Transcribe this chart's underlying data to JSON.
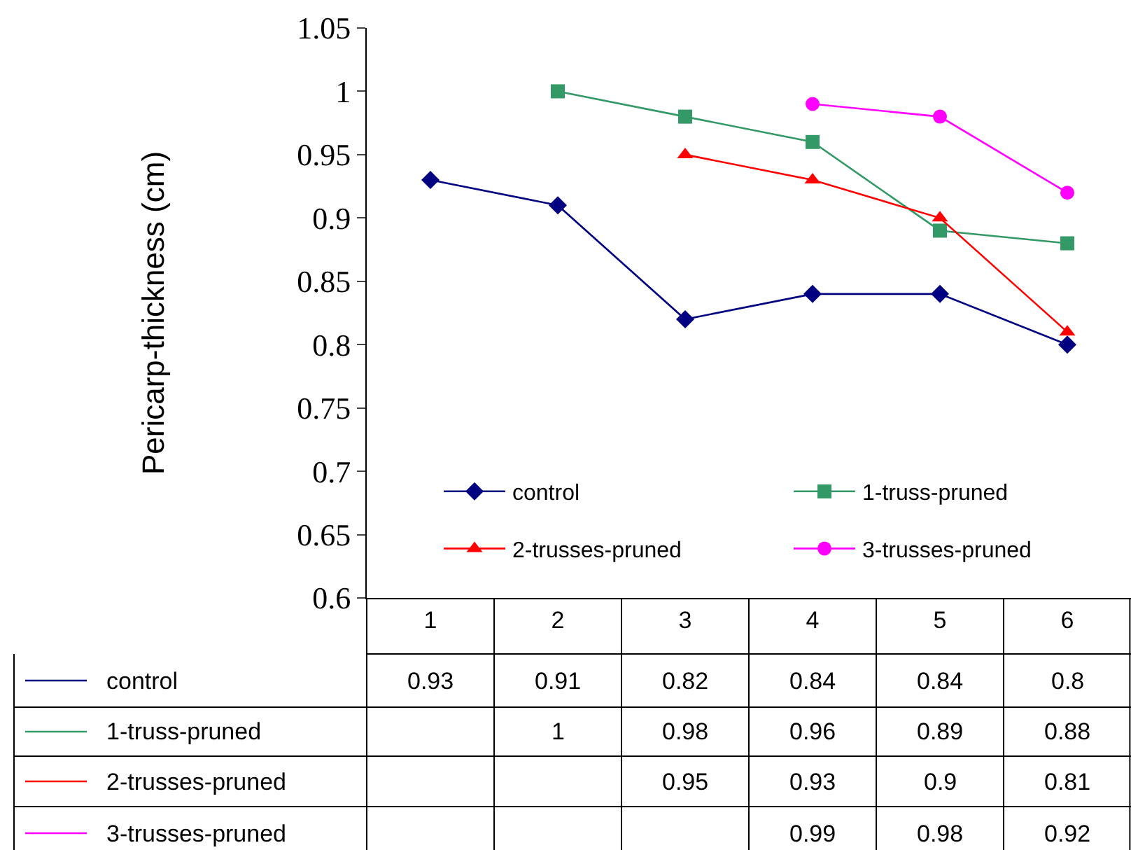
{
  "chart_data": {
    "type": "line",
    "ylabel": "Pericarp-thickness (cm)",
    "categories": [
      "1",
      "2",
      "3",
      "4",
      "5",
      "6"
    ],
    "ylim": [
      0.6,
      1.05
    ],
    "yticks": [
      0.6,
      0.65,
      0.7,
      0.75,
      0.8,
      0.85,
      0.9,
      0.95,
      1,
      1.05
    ],
    "grid": false,
    "legend": "bottom",
    "data_labels": true,
    "series": [
      {
        "name": "control",
        "color": "#000080",
        "marker": "diamond",
        "values": [
          0.93,
          0.91,
          0.82,
          0.84,
          0.84,
          0.8
        ]
      },
      {
        "name": "1-truss-pruned",
        "color": "#339966",
        "marker": "square",
        "values": [
          null,
          1,
          0.98,
          0.96,
          0.89,
          0.88
        ]
      },
      {
        "name": "2-trusses-pruned",
        "color": "#ff0000",
        "marker": "triangle",
        "values": [
          null,
          null,
          0.95,
          0.93,
          0.9,
          0.81
        ]
      },
      {
        "name": "3-trusses-pruned",
        "color": "#ff00ff",
        "marker": "circle",
        "values": [
          null,
          null,
          null,
          0.99,
          0.98,
          0.92
        ]
      }
    ]
  }
}
